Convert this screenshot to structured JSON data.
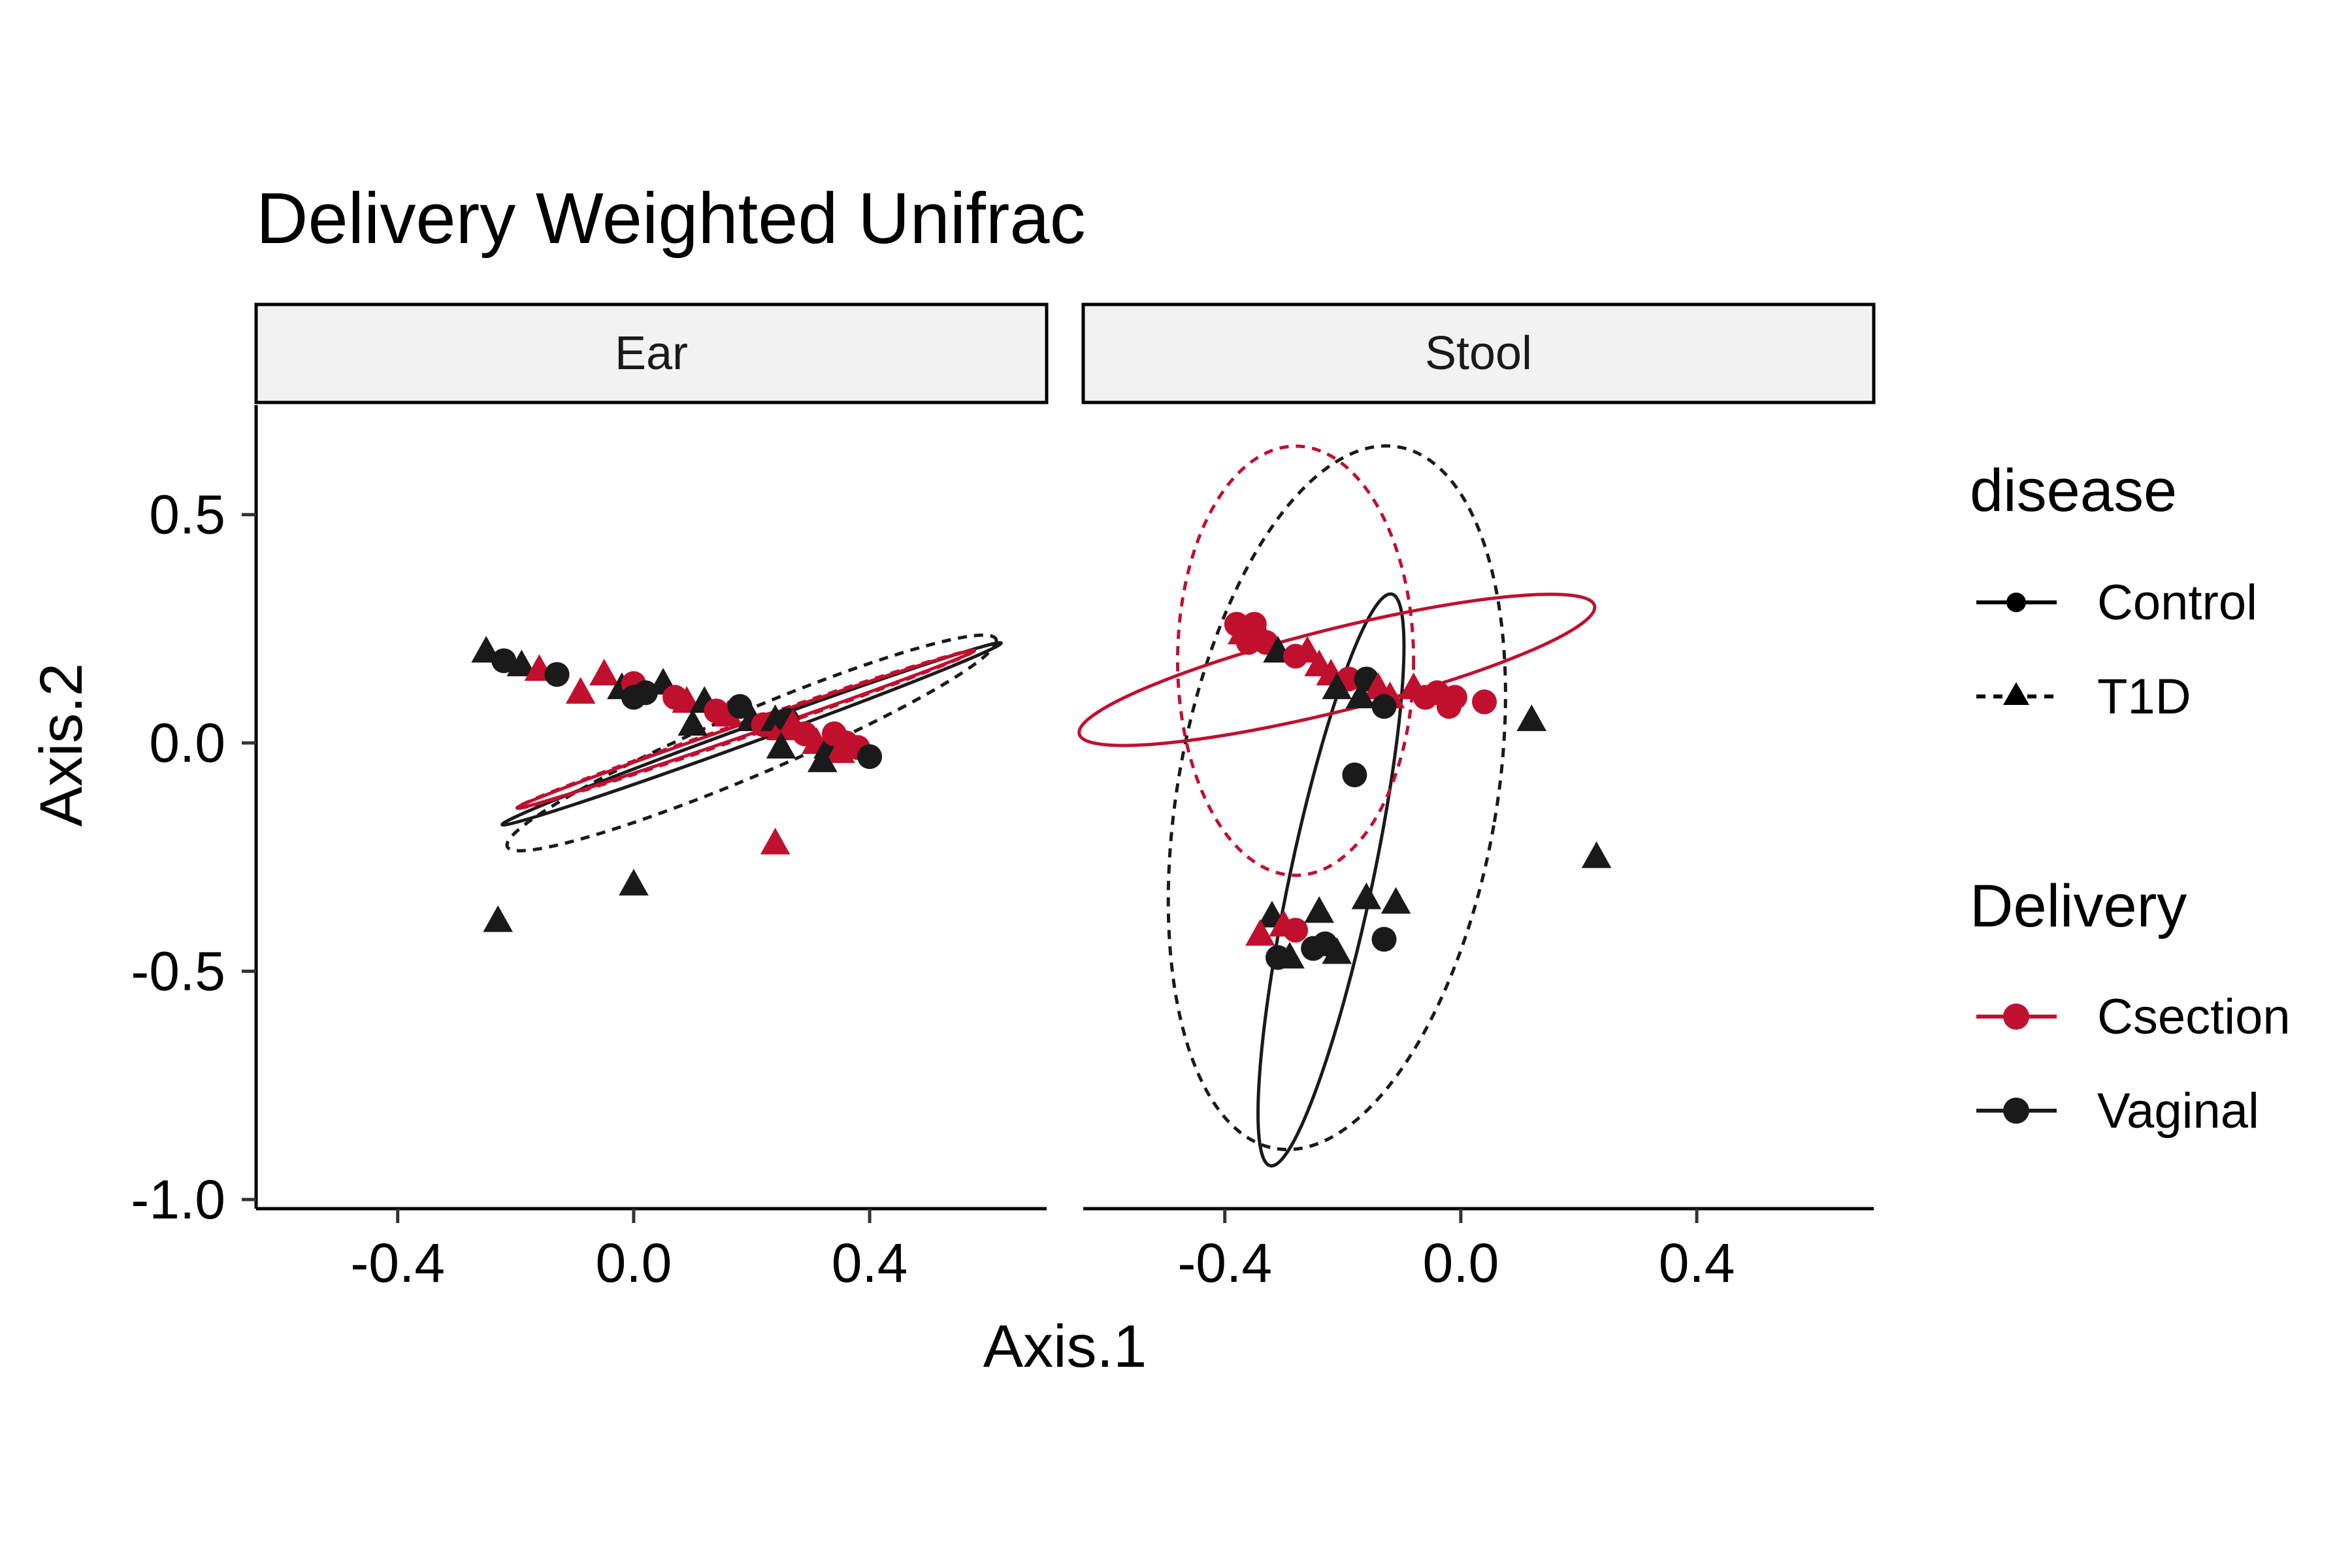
{
  "chart_data": {
    "type": "scatter",
    "title": "Delivery Weighted Unifrac",
    "xlabel": "Axis.1",
    "ylabel": "Axis.2",
    "xlim": [
      -0.64,
      0.7
    ],
    "ylim": [
      -1.02,
      0.74
    ],
    "x_ticks": [
      -0.4,
      0.0,
      0.4
    ],
    "x_tick_labels": [
      "-0.4",
      "0.0",
      "0.4"
    ],
    "y_ticks": [
      -1.0,
      -0.5,
      0.0,
      0.5
    ],
    "y_tick_labels": [
      "-1.0",
      "-0.5",
      "0.0",
      "0.5"
    ],
    "grid": false,
    "legend_position": "right",
    "colors": {
      "Csection": "#C0102E",
      "Vaginal": "#1A1A1A"
    },
    "legends": [
      {
        "title": "disease",
        "entries": [
          {
            "label": "Control",
            "shape": "circle",
            "line": "solid",
            "color": "#000000"
          },
          {
            "label": "T1D",
            "shape": "triangle",
            "line": "dashed",
            "color": "#000000"
          }
        ]
      },
      {
        "title": "Delivery",
        "entries": [
          {
            "label": "Csection",
            "shape": "circle",
            "line": "solid",
            "color": "#C0102E"
          },
          {
            "label": "Vaginal",
            "shape": "circle",
            "line": "solid",
            "color": "#1A1A1A"
          }
        ]
      }
    ],
    "panels": [
      {
        "name": "Ear",
        "ellipses": [
          {
            "delivery": "Vaginal",
            "disease": "T1D",
            "cx": 0.2,
            "cy": 0.0,
            "rx": 0.45,
            "ry": 0.07,
            "angle_deg": -23
          },
          {
            "delivery": "Vaginal",
            "disease": "Control",
            "cx": 0.2,
            "cy": 0.02,
            "rx": 0.45,
            "ry": 0.018,
            "angle_deg": -20
          },
          {
            "delivery": "Csection",
            "disease": "Control",
            "cx": 0.19,
            "cy": 0.03,
            "rx": 0.41,
            "ry": 0.013,
            "angle_deg": -19
          },
          {
            "delivery": "Csection",
            "disease": "T1D",
            "cx": 0.19,
            "cy": 0.03,
            "rx": 0.41,
            "ry": 0.016,
            "angle_deg": -19
          }
        ],
        "points": [
          {
            "x": -0.25,
            "y": 0.2,
            "delivery": "Vaginal",
            "disease": "T1D"
          },
          {
            "x": -0.22,
            "y": 0.18,
            "delivery": "Vaginal",
            "disease": "Control"
          },
          {
            "x": -0.19,
            "y": 0.17,
            "delivery": "Vaginal",
            "disease": "T1D"
          },
          {
            "x": -0.16,
            "y": 0.16,
            "delivery": "Csection",
            "disease": "T1D"
          },
          {
            "x": -0.13,
            "y": 0.15,
            "delivery": "Vaginal",
            "disease": "Control"
          },
          {
            "x": -0.09,
            "y": 0.11,
            "delivery": "Csection",
            "disease": "T1D"
          },
          {
            "x": -0.05,
            "y": 0.15,
            "delivery": "Csection",
            "disease": "T1D"
          },
          {
            "x": -0.02,
            "y": 0.12,
            "delivery": "Vaginal",
            "disease": "T1D"
          },
          {
            "x": 0.0,
            "y": 0.13,
            "delivery": "Csection",
            "disease": "Control"
          },
          {
            "x": 0.02,
            "y": 0.11,
            "delivery": "Vaginal",
            "disease": "Control"
          },
          {
            "x": 0.05,
            "y": 0.13,
            "delivery": "Vaginal",
            "disease": "T1D"
          },
          {
            "x": 0.07,
            "y": 0.1,
            "delivery": "Csection",
            "disease": "Control"
          },
          {
            "x": 0.09,
            "y": 0.09,
            "delivery": "Csection",
            "disease": "T1D"
          },
          {
            "x": 0.1,
            "y": 0.04,
            "delivery": "Vaginal",
            "disease": "T1D"
          },
          {
            "x": 0.12,
            "y": 0.09,
            "delivery": "Vaginal",
            "disease": "T1D"
          },
          {
            "x": 0.14,
            "y": 0.07,
            "delivery": "Csection",
            "disease": "Control"
          },
          {
            "x": 0.16,
            "y": 0.06,
            "delivery": "Csection",
            "disease": "T1D"
          },
          {
            "x": 0.18,
            "y": 0.08,
            "delivery": "Vaginal",
            "disease": "Control"
          },
          {
            "x": 0.2,
            "y": 0.05,
            "delivery": "Vaginal",
            "disease": "T1D"
          },
          {
            "x": 0.22,
            "y": 0.04,
            "delivery": "Csection",
            "disease": "Control"
          },
          {
            "x": 0.24,
            "y": 0.05,
            "delivery": "Vaginal",
            "disease": "T1D"
          },
          {
            "x": 0.25,
            "y": 0.03,
            "delivery": "Csection",
            "disease": "T1D"
          },
          {
            "x": 0.26,
            "y": 0.05,
            "delivery": "Vaginal",
            "disease": "Control"
          },
          {
            "x": 0.27,
            "y": 0.04,
            "delivery": "Csection",
            "disease": "T1D"
          },
          {
            "x": 0.29,
            "y": 0.02,
            "delivery": "Csection",
            "disease": "Control"
          },
          {
            "x": 0.31,
            "y": 0.0,
            "delivery": "Csection",
            "disease": "T1D"
          },
          {
            "x": 0.33,
            "y": -0.01,
            "delivery": "Vaginal",
            "disease": "T1D"
          },
          {
            "x": 0.34,
            "y": 0.02,
            "delivery": "Csection",
            "disease": "Control"
          },
          {
            "x": 0.35,
            "y": -0.02,
            "delivery": "Csection",
            "disease": "T1D"
          },
          {
            "x": 0.36,
            "y": 0.0,
            "delivery": "Csection",
            "disease": "Control"
          },
          {
            "x": 0.38,
            "y": -0.01,
            "delivery": "Csection",
            "disease": "Control"
          },
          {
            "x": 0.4,
            "y": -0.03,
            "delivery": "Vaginal",
            "disease": "Control"
          },
          {
            "x": 0.32,
            "y": -0.04,
            "delivery": "Vaginal",
            "disease": "T1D"
          },
          {
            "x": 0.25,
            "y": -0.01,
            "delivery": "Vaginal",
            "disease": "T1D"
          },
          {
            "x": 0.0,
            "y": 0.1,
            "delivery": "Vaginal",
            "disease": "Control"
          },
          {
            "x": -0.23,
            "y": -0.39,
            "delivery": "Vaginal",
            "disease": "T1D"
          },
          {
            "x": 0.0,
            "y": -0.31,
            "delivery": "Vaginal",
            "disease": "T1D"
          },
          {
            "x": 0.24,
            "y": -0.22,
            "delivery": "Csection",
            "disease": "T1D"
          }
        ]
      },
      {
        "name": "Stool",
        "ellipses": [
          {
            "delivery": "Vaginal",
            "disease": "T1D",
            "cx": -0.21,
            "cy": -0.12,
            "rx": 0.27,
            "ry": 0.78,
            "angle_deg": 10
          },
          {
            "delivery": "Vaginal",
            "disease": "Control",
            "cx": -0.22,
            "cy": -0.3,
            "rx": 0.07,
            "ry": 0.64,
            "angle_deg": 12
          },
          {
            "delivery": "Csection",
            "disease": "Control",
            "cx": -0.21,
            "cy": 0.16,
            "rx": 0.45,
            "ry": 0.09,
            "angle_deg": -14
          },
          {
            "delivery": "Csection",
            "disease": "T1D",
            "cx": -0.28,
            "cy": 0.18,
            "rx": 0.2,
            "ry": 0.47,
            "angle_deg": 0
          }
        ],
        "points": [
          {
            "x": -0.38,
            "y": 0.26,
            "delivery": "Csection",
            "disease": "Control"
          },
          {
            "x": -0.37,
            "y": 0.24,
            "delivery": "Csection",
            "disease": "T1D"
          },
          {
            "x": -0.35,
            "y": 0.26,
            "delivery": "Csection",
            "disease": "Control"
          },
          {
            "x": -0.36,
            "y": 0.22,
            "delivery": "Csection",
            "disease": "Control"
          },
          {
            "x": -0.34,
            "y": 0.24,
            "delivery": "Csection",
            "disease": "T1D"
          },
          {
            "x": -0.33,
            "y": 0.22,
            "delivery": "Csection",
            "disease": "Control"
          },
          {
            "x": -0.31,
            "y": 0.2,
            "delivery": "Vaginal",
            "disease": "T1D"
          },
          {
            "x": -0.28,
            "y": 0.19,
            "delivery": "Csection",
            "disease": "Control"
          },
          {
            "x": -0.26,
            "y": 0.2,
            "delivery": "Csection",
            "disease": "T1D"
          },
          {
            "x": -0.24,
            "y": 0.17,
            "delivery": "Csection",
            "disease": "T1D"
          },
          {
            "x": -0.22,
            "y": 0.15,
            "delivery": "Csection",
            "disease": "T1D"
          },
          {
            "x": -0.19,
            "y": 0.14,
            "delivery": "Csection",
            "disease": "Control"
          },
          {
            "x": -0.16,
            "y": 0.14,
            "delivery": "Vaginal",
            "disease": "Control"
          },
          {
            "x": -0.14,
            "y": 0.12,
            "delivery": "Csection",
            "disease": "T1D"
          },
          {
            "x": -0.12,
            "y": 0.1,
            "delivery": "Csection",
            "disease": "T1D"
          },
          {
            "x": -0.08,
            "y": 0.12,
            "delivery": "Csection",
            "disease": "T1D"
          },
          {
            "x": -0.06,
            "y": 0.1,
            "delivery": "Csection",
            "disease": "Control"
          },
          {
            "x": -0.04,
            "y": 0.11,
            "delivery": "Csection",
            "disease": "Control"
          },
          {
            "x": -0.01,
            "y": 0.1,
            "delivery": "Csection",
            "disease": "Control"
          },
          {
            "x": -0.02,
            "y": 0.08,
            "delivery": "Csection",
            "disease": "Control"
          },
          {
            "x": 0.04,
            "y": 0.09,
            "delivery": "Csection",
            "disease": "Control"
          },
          {
            "x": -0.13,
            "y": 0.08,
            "delivery": "Vaginal",
            "disease": "Control"
          },
          {
            "x": -0.17,
            "y": 0.1,
            "delivery": "Vaginal",
            "disease": "T1D"
          },
          {
            "x": -0.21,
            "y": 0.12,
            "delivery": "Vaginal",
            "disease": "T1D"
          },
          {
            "x": 0.12,
            "y": 0.05,
            "delivery": "Vaginal",
            "disease": "T1D"
          },
          {
            "x": -0.18,
            "y": -0.07,
            "delivery": "Vaginal",
            "disease": "Control"
          },
          {
            "x": 0.23,
            "y": -0.25,
            "delivery": "Vaginal",
            "disease": "T1D"
          },
          {
            "x": -0.32,
            "y": -0.38,
            "delivery": "Vaginal",
            "disease": "T1D"
          },
          {
            "x": -0.34,
            "y": -0.42,
            "delivery": "Csection",
            "disease": "T1D"
          },
          {
            "x": -0.3,
            "y": -0.4,
            "delivery": "Csection",
            "disease": "T1D"
          },
          {
            "x": -0.28,
            "y": -0.41,
            "delivery": "Csection",
            "disease": "Control"
          },
          {
            "x": -0.24,
            "y": -0.37,
            "delivery": "Vaginal",
            "disease": "T1D"
          },
          {
            "x": -0.16,
            "y": -0.34,
            "delivery": "Vaginal",
            "disease": "T1D"
          },
          {
            "x": -0.11,
            "y": -0.35,
            "delivery": "Vaginal",
            "disease": "T1D"
          },
          {
            "x": -0.31,
            "y": -0.47,
            "delivery": "Vaginal",
            "disease": "Control"
          },
          {
            "x": -0.29,
            "y": -0.47,
            "delivery": "Vaginal",
            "disease": "T1D"
          },
          {
            "x": -0.25,
            "y": -0.45,
            "delivery": "Vaginal",
            "disease": "Control"
          },
          {
            "x": -0.23,
            "y": -0.44,
            "delivery": "Vaginal",
            "disease": "Control"
          },
          {
            "x": -0.21,
            "y": -0.46,
            "delivery": "Vaginal",
            "disease": "T1D"
          },
          {
            "x": -0.13,
            "y": -0.43,
            "delivery": "Vaginal",
            "disease": "Control"
          }
        ]
      }
    ]
  }
}
